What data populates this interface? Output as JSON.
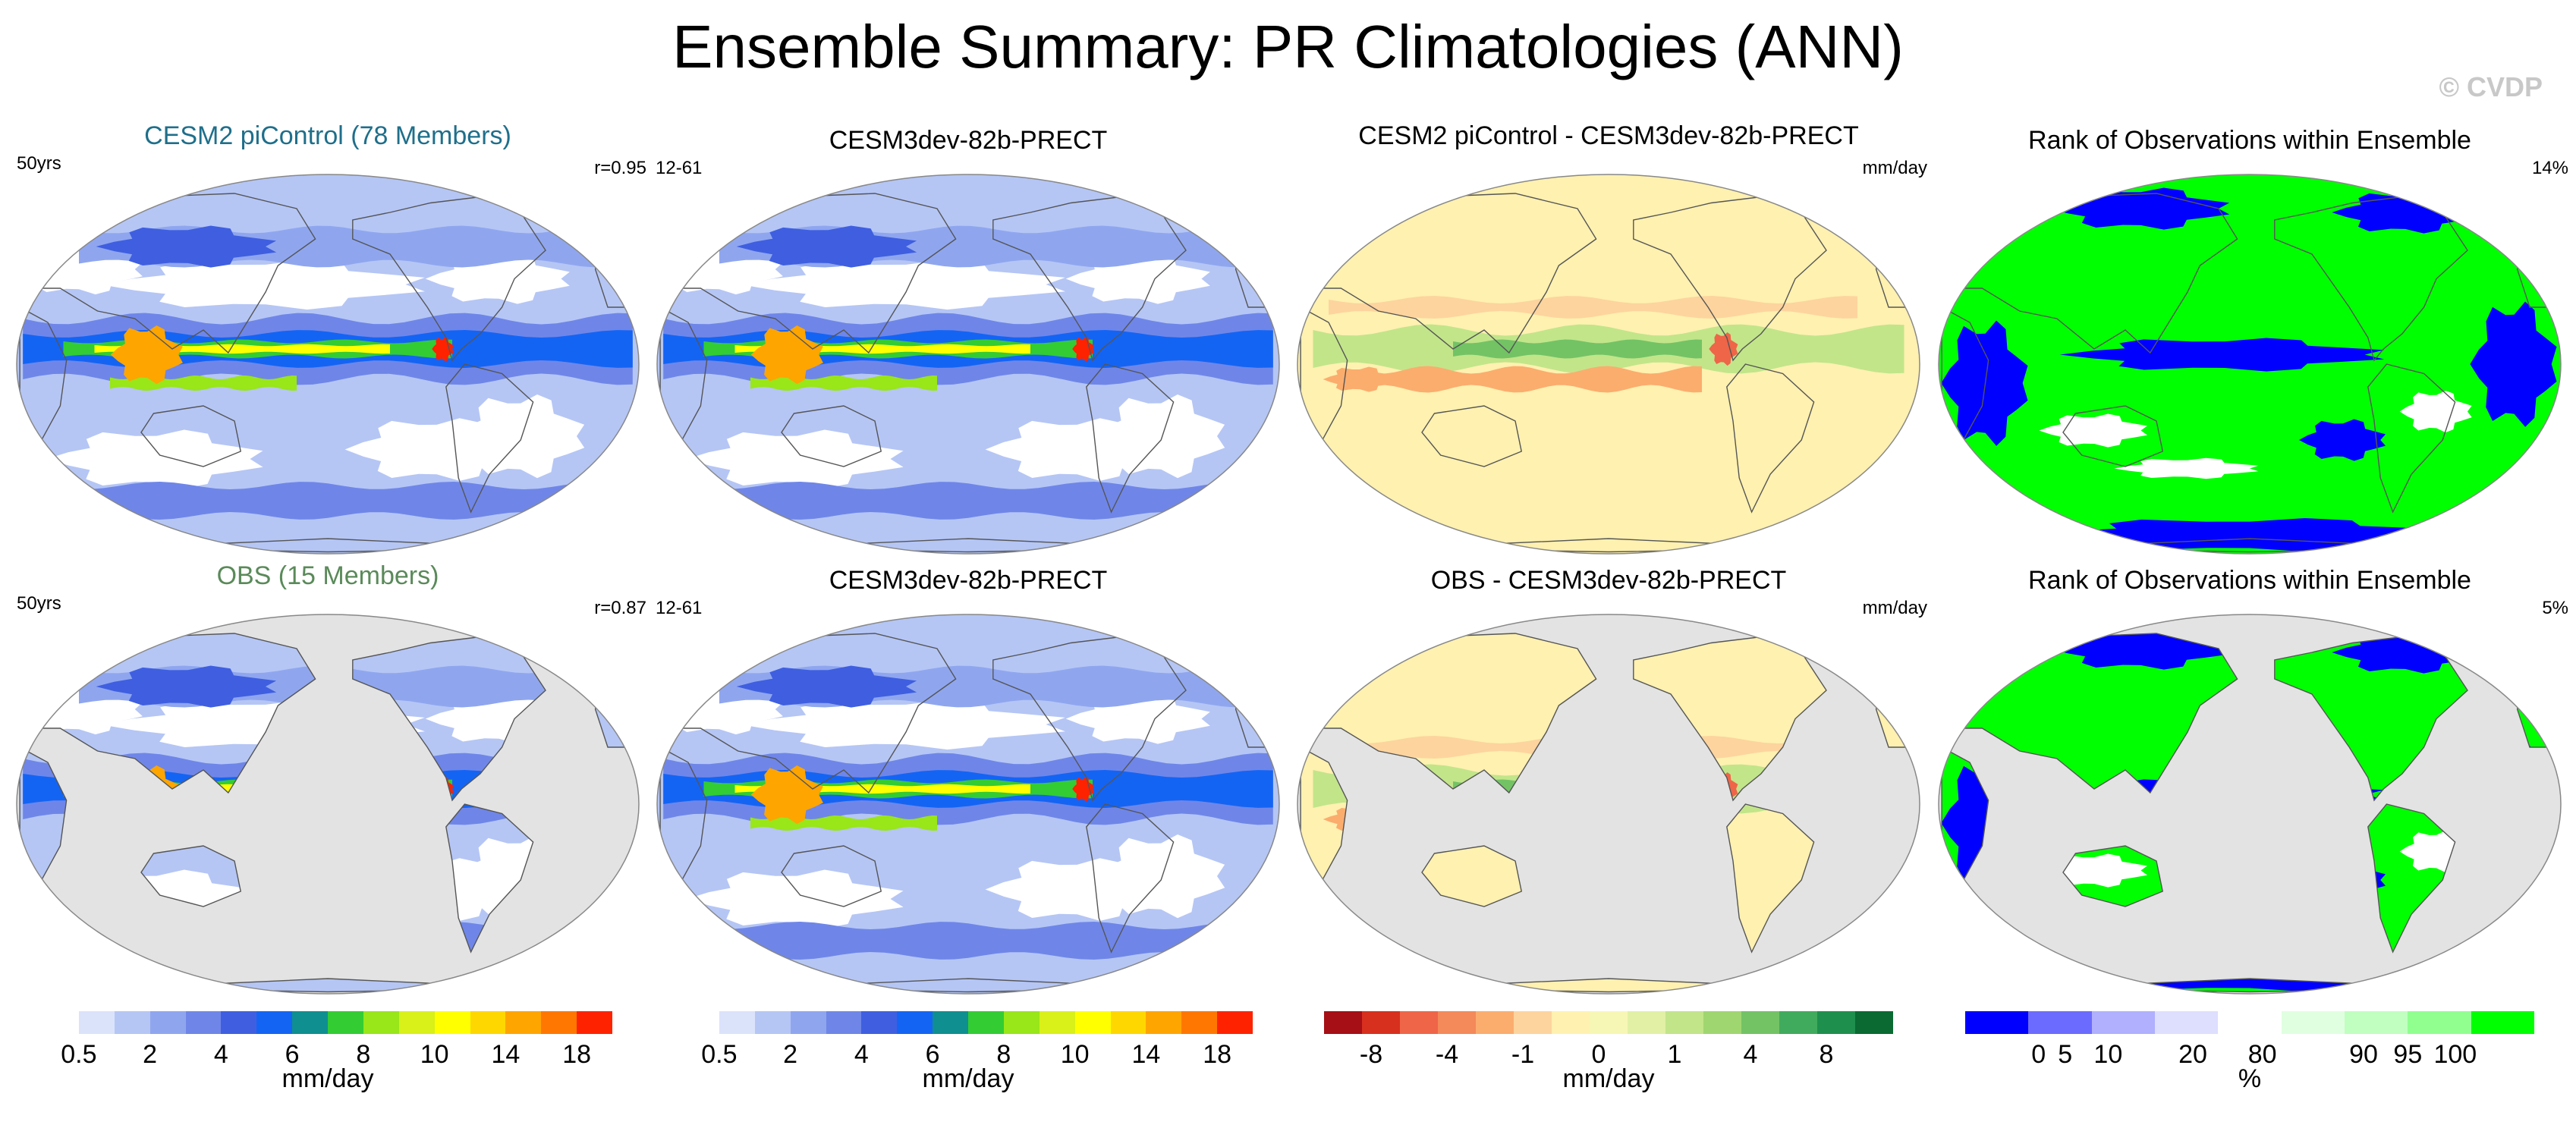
{
  "title": "Ensemble Summary: PR Climatologies (ANN)",
  "copyright": "© CVDP",
  "panels": [
    {
      "title": "CESM2 piControl (78 Members)",
      "title_color": "#1f6f8b",
      "left": "50yrs",
      "right": "r=0.95",
      "field": "pr_model",
      "mask_ocean": false
    },
    {
      "title": "CESM3dev-82b-PRECT",
      "title_color": "#000000",
      "left": "12-61",
      "right": "",
      "field": "pr_model",
      "mask_ocean": false
    },
    {
      "title": "CESM2 piControl - CESM3dev-82b-PRECT",
      "title_color": "#000000",
      "left": "",
      "right": "mm/day",
      "field": "diff",
      "mask_ocean": false
    },
    {
      "title": "Rank of Observations within Ensemble",
      "title_color": "#000000",
      "left": "",
      "right": "14%",
      "field": "rank",
      "mask_ocean": false
    },
    {
      "title": "OBS (15 Members)",
      "title_color": "#5a8a5a",
      "left": "50yrs",
      "right": "r=0.87",
      "field": "pr_obs",
      "mask_ocean": true
    },
    {
      "title": "CESM3dev-82b-PRECT",
      "title_color": "#000000",
      "left": "12-61",
      "right": "",
      "field": "pr_model",
      "mask_ocean": false
    },
    {
      "title": "OBS - CESM3dev-82b-PRECT",
      "title_color": "#000000",
      "left": "",
      "right": "mm/day",
      "field": "diff",
      "mask_ocean": true
    },
    {
      "title": "Rank of Observations within Ensemble",
      "title_color": "#000000",
      "left": "",
      "right": "5%",
      "field": "rank",
      "mask_ocean": true
    }
  ],
  "colorbars": [
    {
      "unit": "mm/day",
      "colors": [
        "#ffffff",
        "#dbe3fb",
        "#b5c6f5",
        "#8fa6ef",
        "#6f86e8",
        "#3f5fe0",
        "#1464f4",
        "#0f8f8f",
        "#33cc33",
        "#99e619",
        "#d9f019",
        "#ffff00",
        "#ffd700",
        "#ffa500",
        "#ff7700",
        "#ff2200"
      ],
      "labels": [
        "0.5",
        "2",
        "4",
        "6",
        "8",
        "10",
        "14",
        "18"
      ]
    },
    {
      "unit": "mm/day",
      "colors": [
        "#ffffff",
        "#dbe3fb",
        "#b5c6f5",
        "#8fa6ef",
        "#6f86e8",
        "#3f5fe0",
        "#1464f4",
        "#0f8f8f",
        "#33cc33",
        "#99e619",
        "#d9f019",
        "#ffff00",
        "#ffd700",
        "#ffa500",
        "#ff7700",
        "#ff2200"
      ],
      "labels": [
        "0.5",
        "2",
        "4",
        "6",
        "8",
        "10",
        "14",
        "18"
      ]
    },
    {
      "unit": "mm/day",
      "colors": [
        "#a50f15",
        "#d7301f",
        "#ef6548",
        "#f4895a",
        "#fbad6e",
        "#fdd49e",
        "#fff1b0",
        "#f7f7b5",
        "#e1f0a5",
        "#c2e58a",
        "#a0d670",
        "#73c365",
        "#41ab5d",
        "#1f8f4d",
        "#0a6a32"
      ],
      "labels": [
        "-8",
        "-4",
        "-1",
        "0",
        "1",
        "4",
        "8"
      ]
    },
    {
      "unit": "%",
      "colors": [
        "#0000ff",
        "#6b6bff",
        "#b0b0ff",
        "#dedeff",
        "#ffffff",
        "#e0ffe0",
        "#c0ffc0",
        "#90ff90",
        "#00ff00"
      ],
      "labels": [
        "0",
        "5",
        "10",
        "20",
        "80",
        "90",
        "95",
        "100"
      ]
    }
  ],
  "chart_data": [
    {
      "type": "heatmap",
      "title": "CESM2 piControl (78 Members)",
      "variable": "PR climatology (ANN)",
      "units": "mm/day",
      "period": "50yrs",
      "pattern_correlation": "r=0.95",
      "contour_levels": [
        0.5,
        1,
        2,
        3,
        4,
        5,
        6,
        7,
        8,
        9,
        10,
        12,
        14,
        16,
        18
      ]
    },
    {
      "type": "heatmap",
      "title": "CESM3dev-82b-PRECT",
      "variable": "PR climatology (ANN)",
      "units": "mm/day",
      "period": "12-61",
      "contour_levels": [
        0.5,
        1,
        2,
        3,
        4,
        5,
        6,
        7,
        8,
        9,
        10,
        12,
        14,
        16,
        18
      ]
    },
    {
      "type": "heatmap",
      "title": "CESM2 piControl - CESM3dev-82b-PRECT",
      "units": "mm/day",
      "contour_levels": [
        -8,
        -6,
        -4,
        -2,
        -1,
        -0.5,
        0,
        0.5,
        1,
        2,
        4,
        6,
        8
      ]
    },
    {
      "type": "heatmap",
      "title": "Rank of Observations within Ensemble",
      "units": "%",
      "area_summary": "14%",
      "levels": [
        0,
        5,
        10,
        20,
        80,
        90,
        95,
        100
      ]
    },
    {
      "type": "heatmap",
      "title": "OBS (15 Members)",
      "variable": "PR climatology (ANN)",
      "units": "mm/day",
      "period": "50yrs",
      "pattern_correlation": "r=0.87",
      "coverage": "land only"
    },
    {
      "type": "heatmap",
      "title": "CESM3dev-82b-PRECT",
      "variable": "PR climatology (ANN)",
      "units": "mm/day",
      "period": "12-61"
    },
    {
      "type": "heatmap",
      "title": "OBS - CESM3dev-82b-PRECT",
      "units": "mm/day",
      "coverage": "land only"
    },
    {
      "type": "heatmap",
      "title": "Rank of Observations within Ensemble",
      "units": "%",
      "area_summary": "5%",
      "coverage": "land only"
    }
  ]
}
